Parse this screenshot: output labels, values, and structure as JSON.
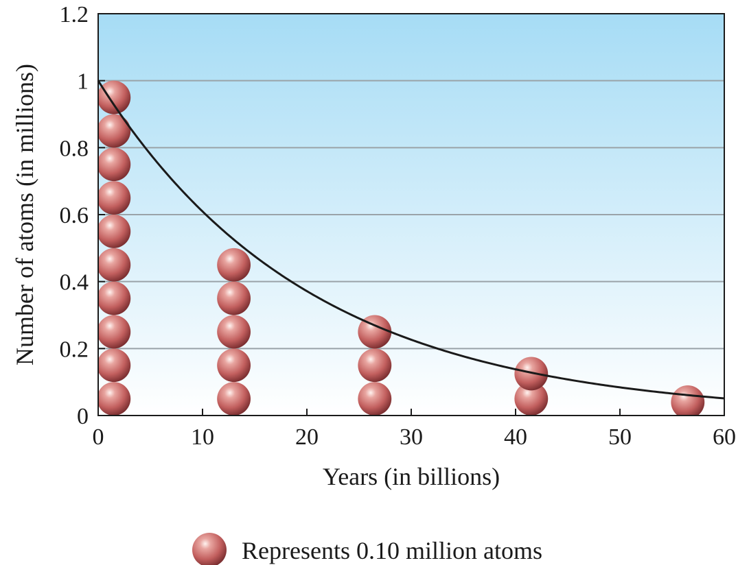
{
  "chart_data": {
    "type": "scatter",
    "xlabel": "Years (in billions)",
    "ylabel": "Number of atoms (in millions)",
    "xlim": [
      0,
      60
    ],
    "ylim": [
      0,
      1.2
    ],
    "x_ticks": [
      "0",
      "10",
      "20",
      "30",
      "40",
      "50",
      "60"
    ],
    "y_ticks": [
      "0",
      "0.2",
      "0.4",
      "0.6",
      "0.8",
      "1",
      "1.2"
    ],
    "grid": "horizontal",
    "background_gradient": [
      "#a6dcf5",
      "#ffffff"
    ],
    "curve": {
      "type": "exponential-decay",
      "initial": 1.0,
      "half_life": 14,
      "color": "#1a1a1a"
    },
    "atom_stacks": [
      {
        "x": 1.5,
        "atoms": 10
      },
      {
        "x": 13,
        "atoms": 5
      },
      {
        "x": 26.5,
        "atoms": 3
      },
      {
        "x": 41.5,
        "atoms": 1.5
      },
      {
        "x": 56.5,
        "atoms": 0.8
      }
    ],
    "atom_value": 0.1,
    "atom_color": "#c96a6a",
    "legend": {
      "label": "Represents 0.10 million atoms",
      "placement": "bottom-center"
    }
  }
}
